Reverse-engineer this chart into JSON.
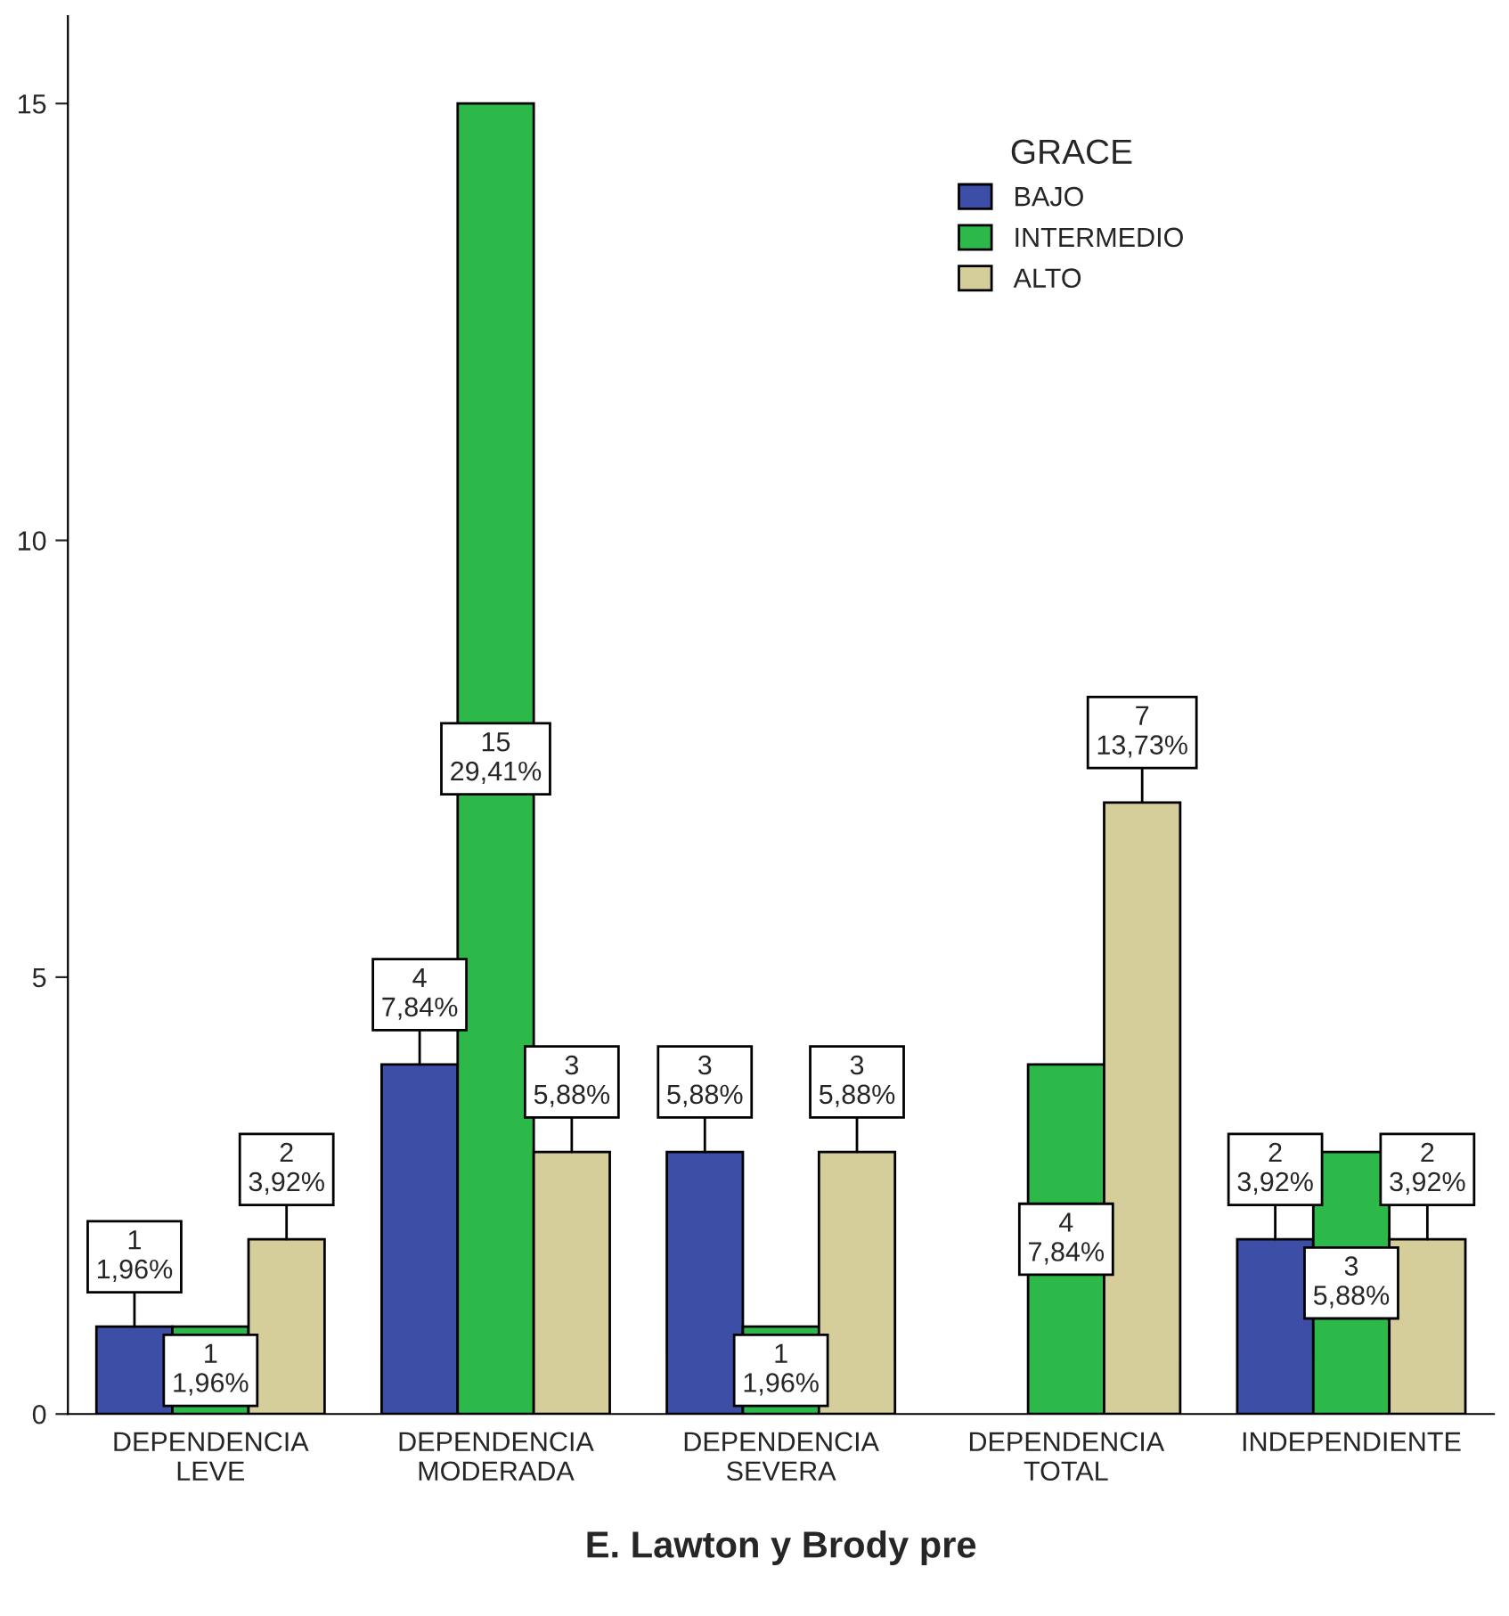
{
  "chart_data": {
    "type": "bar",
    "categories": [
      "DEPENDENCIA\nLEVE",
      "DEPENDENCIA\nMODERADA",
      "DEPENDENCIA\nSEVERA",
      "DEPENDENCIA\nTOTAL",
      "INDEPENDIENTE"
    ],
    "series": [
      {
        "name": "BAJO",
        "color": "#3c4ea6",
        "values": [
          1,
          4,
          3,
          null,
          2
        ],
        "value_labels": [
          "1\n1,96%",
          "4\n7,84%",
          "3\n5,88%",
          null,
          "2\n3,92%"
        ]
      },
      {
        "name": "INTERMEDIO",
        "color": "#2db84a",
        "values": [
          1,
          15,
          1,
          4,
          3
        ],
        "value_labels": [
          "1\n1,96%",
          "15\n29,41%",
          "1\n1,96%",
          "4\n7,84%",
          "3\n5,88%"
        ]
      },
      {
        "name": "ALTO",
        "color": "#d5cd9a",
        "values": [
          2,
          3,
          3,
          7,
          2
        ],
        "value_labels": [
          "2\n3,92%",
          "3\n5,88%",
          "3\n5,88%",
          "7\n13,73%",
          "2\n3,92%"
        ]
      }
    ],
    "xlabel": "E. Lawton y Brody pre",
    "legend_title": "GRACE",
    "legend": "top right",
    "ylim": [
      0,
      16
    ],
    "yticks": [
      0,
      5,
      10,
      15
    ],
    "grid": false
  }
}
